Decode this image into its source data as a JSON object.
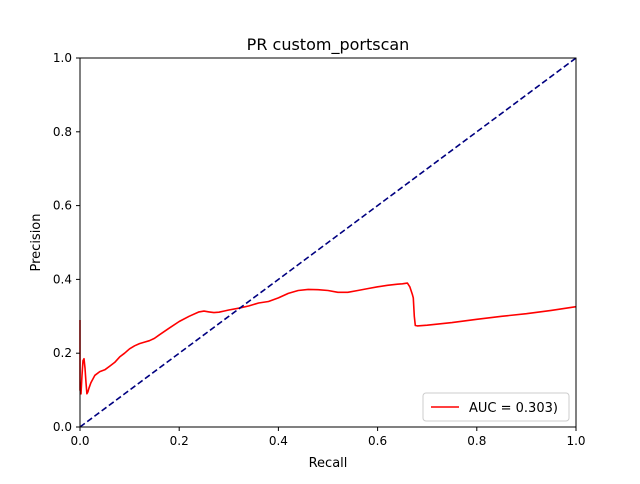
{
  "chart_data": {
    "type": "line",
    "title": "PR custom_portscan",
    "xlabel": "Recall",
    "ylabel": "Precision",
    "xlim": [
      0,
      1
    ],
    "ylim": [
      0,
      1
    ],
    "xticks": [
      "0.0",
      "0.2",
      "0.4",
      "0.6",
      "0.8",
      "1.0"
    ],
    "yticks": [
      "0.0",
      "0.2",
      "0.4",
      "0.6",
      "0.8",
      "1.0"
    ],
    "grid": false,
    "legend_position": "bottom-right",
    "series": [
      {
        "name": "AUC = 0.303)",
        "color": "#ff0000",
        "style": "solid",
        "x": [
          0.0,
          0.0,
          0.002,
          0.004,
          0.006,
          0.008,
          0.01,
          0.012,
          0.014,
          0.016,
          0.018,
          0.022,
          0.026,
          0.03,
          0.04,
          0.05,
          0.06,
          0.07,
          0.08,
          0.09,
          0.1,
          0.11,
          0.12,
          0.13,
          0.14,
          0.15,
          0.16,
          0.18,
          0.2,
          0.22,
          0.24,
          0.25,
          0.26,
          0.27,
          0.28,
          0.29,
          0.3,
          0.32,
          0.34,
          0.36,
          0.38,
          0.4,
          0.42,
          0.44,
          0.46,
          0.48,
          0.5,
          0.52,
          0.54,
          0.56,
          0.58,
          0.6,
          0.62,
          0.64,
          0.65,
          0.66,
          0.665,
          0.67,
          0.672,
          0.674,
          0.676,
          0.68,
          0.7,
          0.75,
          0.8,
          0.85,
          0.9,
          0.95,
          1.0
        ],
        "y": [
          0.29,
          0.1,
          0.09,
          0.14,
          0.18,
          0.185,
          0.16,
          0.12,
          0.09,
          0.095,
          0.105,
          0.12,
          0.13,
          0.14,
          0.15,
          0.155,
          0.165,
          0.175,
          0.19,
          0.2,
          0.212,
          0.22,
          0.226,
          0.23,
          0.234,
          0.24,
          0.25,
          0.268,
          0.286,
          0.3,
          0.312,
          0.314,
          0.312,
          0.31,
          0.311,
          0.314,
          0.317,
          0.322,
          0.328,
          0.336,
          0.34,
          0.35,
          0.362,
          0.37,
          0.373,
          0.372,
          0.37,
          0.365,
          0.365,
          0.37,
          0.375,
          0.38,
          0.384,
          0.387,
          0.388,
          0.39,
          0.38,
          0.36,
          0.35,
          0.3,
          0.275,
          0.274,
          0.276,
          0.283,
          0.292,
          0.3,
          0.307,
          0.316,
          0.326
        ]
      },
      {
        "name": "",
        "color": "#000080",
        "style": "dashed",
        "x": [
          0,
          1
        ],
        "y": [
          0,
          1
        ]
      }
    ]
  }
}
